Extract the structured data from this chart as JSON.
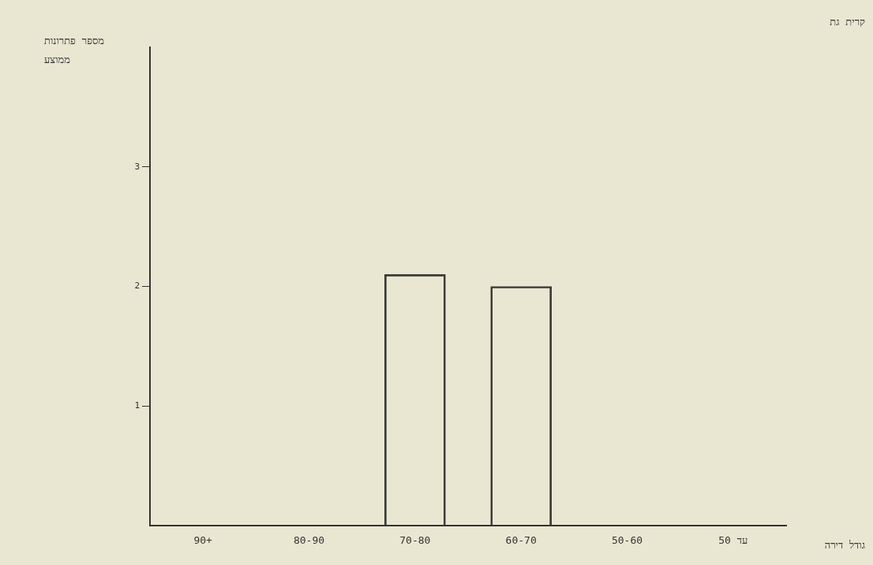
{
  "chart_data": {
    "type": "bar",
    "title": "קרית גת",
    "xlabel": "גודל דירה",
    "ylabel": "מספר פתרונות ממוצע",
    "categories": [
      "90+",
      "80-90",
      "70-80",
      "60-70",
      "50-60",
      "עד 50"
    ],
    "values": [
      null,
      null,
      2.1,
      2.0,
      null,
      null
    ],
    "color": "#3a3a3a",
    "ylim": [
      0,
      4
    ],
    "yticks": [
      1,
      2,
      3
    ],
    "grid": false,
    "legend": false
  }
}
